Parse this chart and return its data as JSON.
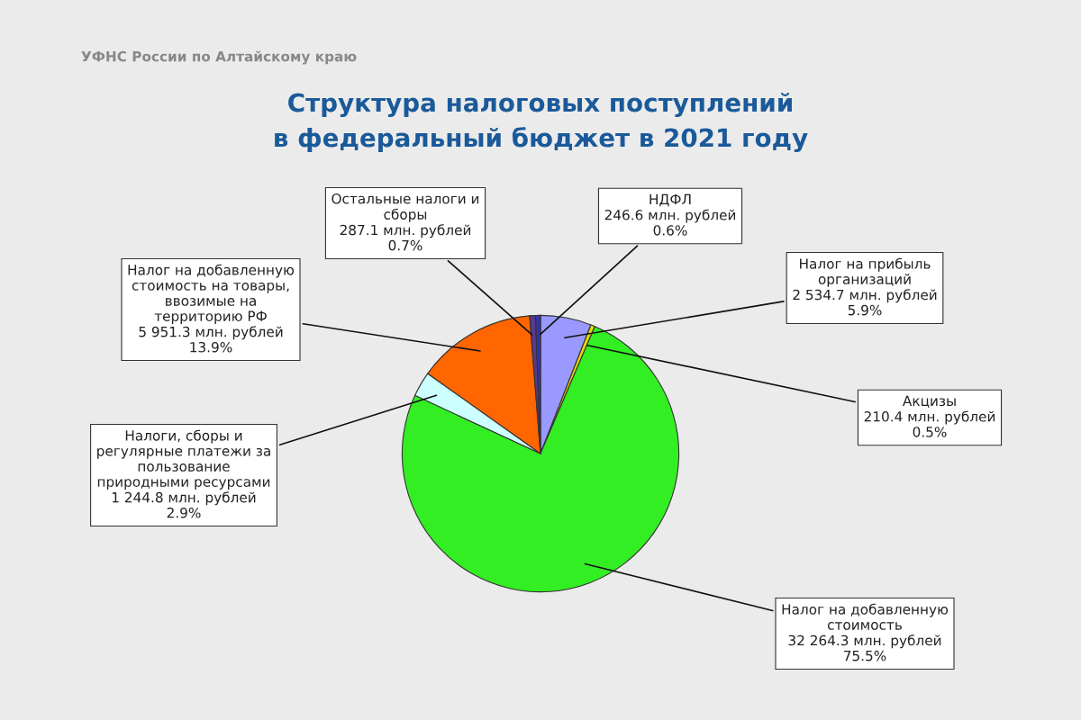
{
  "chart_data": {
    "type": "pie",
    "title": "Структура налоговых поступлений\nв федеральный бюджет в 2021 году",
    "annotations": [
      "УФНС России по Алтайскому краю"
    ],
    "categories": [
      "Налог на прибыль\nорганизаций",
      "Акцизы",
      "Налог на добавленную\nстоимость",
      "Налоги, сборы и\nрегулярные платежи за\nпользование\nприродными ресурсами",
      "Налог на добавленную\nстоимость на товары,\nввозимые на\nтерриторию РФ",
      "Остальные налоги и\nсборы",
      "НДФЛ"
    ],
    "values": [
      2534.7,
      210.4,
      32264.3,
      1244.8,
      5951.3,
      287.1,
      246.6
    ],
    "value_labels": [
      "2 534.7 млн. рублей\n5.9%",
      "210.4 млн. рублей\n0.5%",
      "32 264.3 млн. рублей\n75.5%",
      "1 244.8 млн. рублей\n2.9%",
      "5 951.3 млн. рублей\n13.9%",
      "287.1 млн. рублей\n0.7%",
      "246.6 млн. рублей\n0.6%"
    ],
    "colors": [
      "#9999ff",
      "#e8d800",
      "#33ee22",
      "#ccffff",
      "#ff6600",
      "#5a3a8a",
      "#3333aa"
    ],
    "legend": false
  }
}
